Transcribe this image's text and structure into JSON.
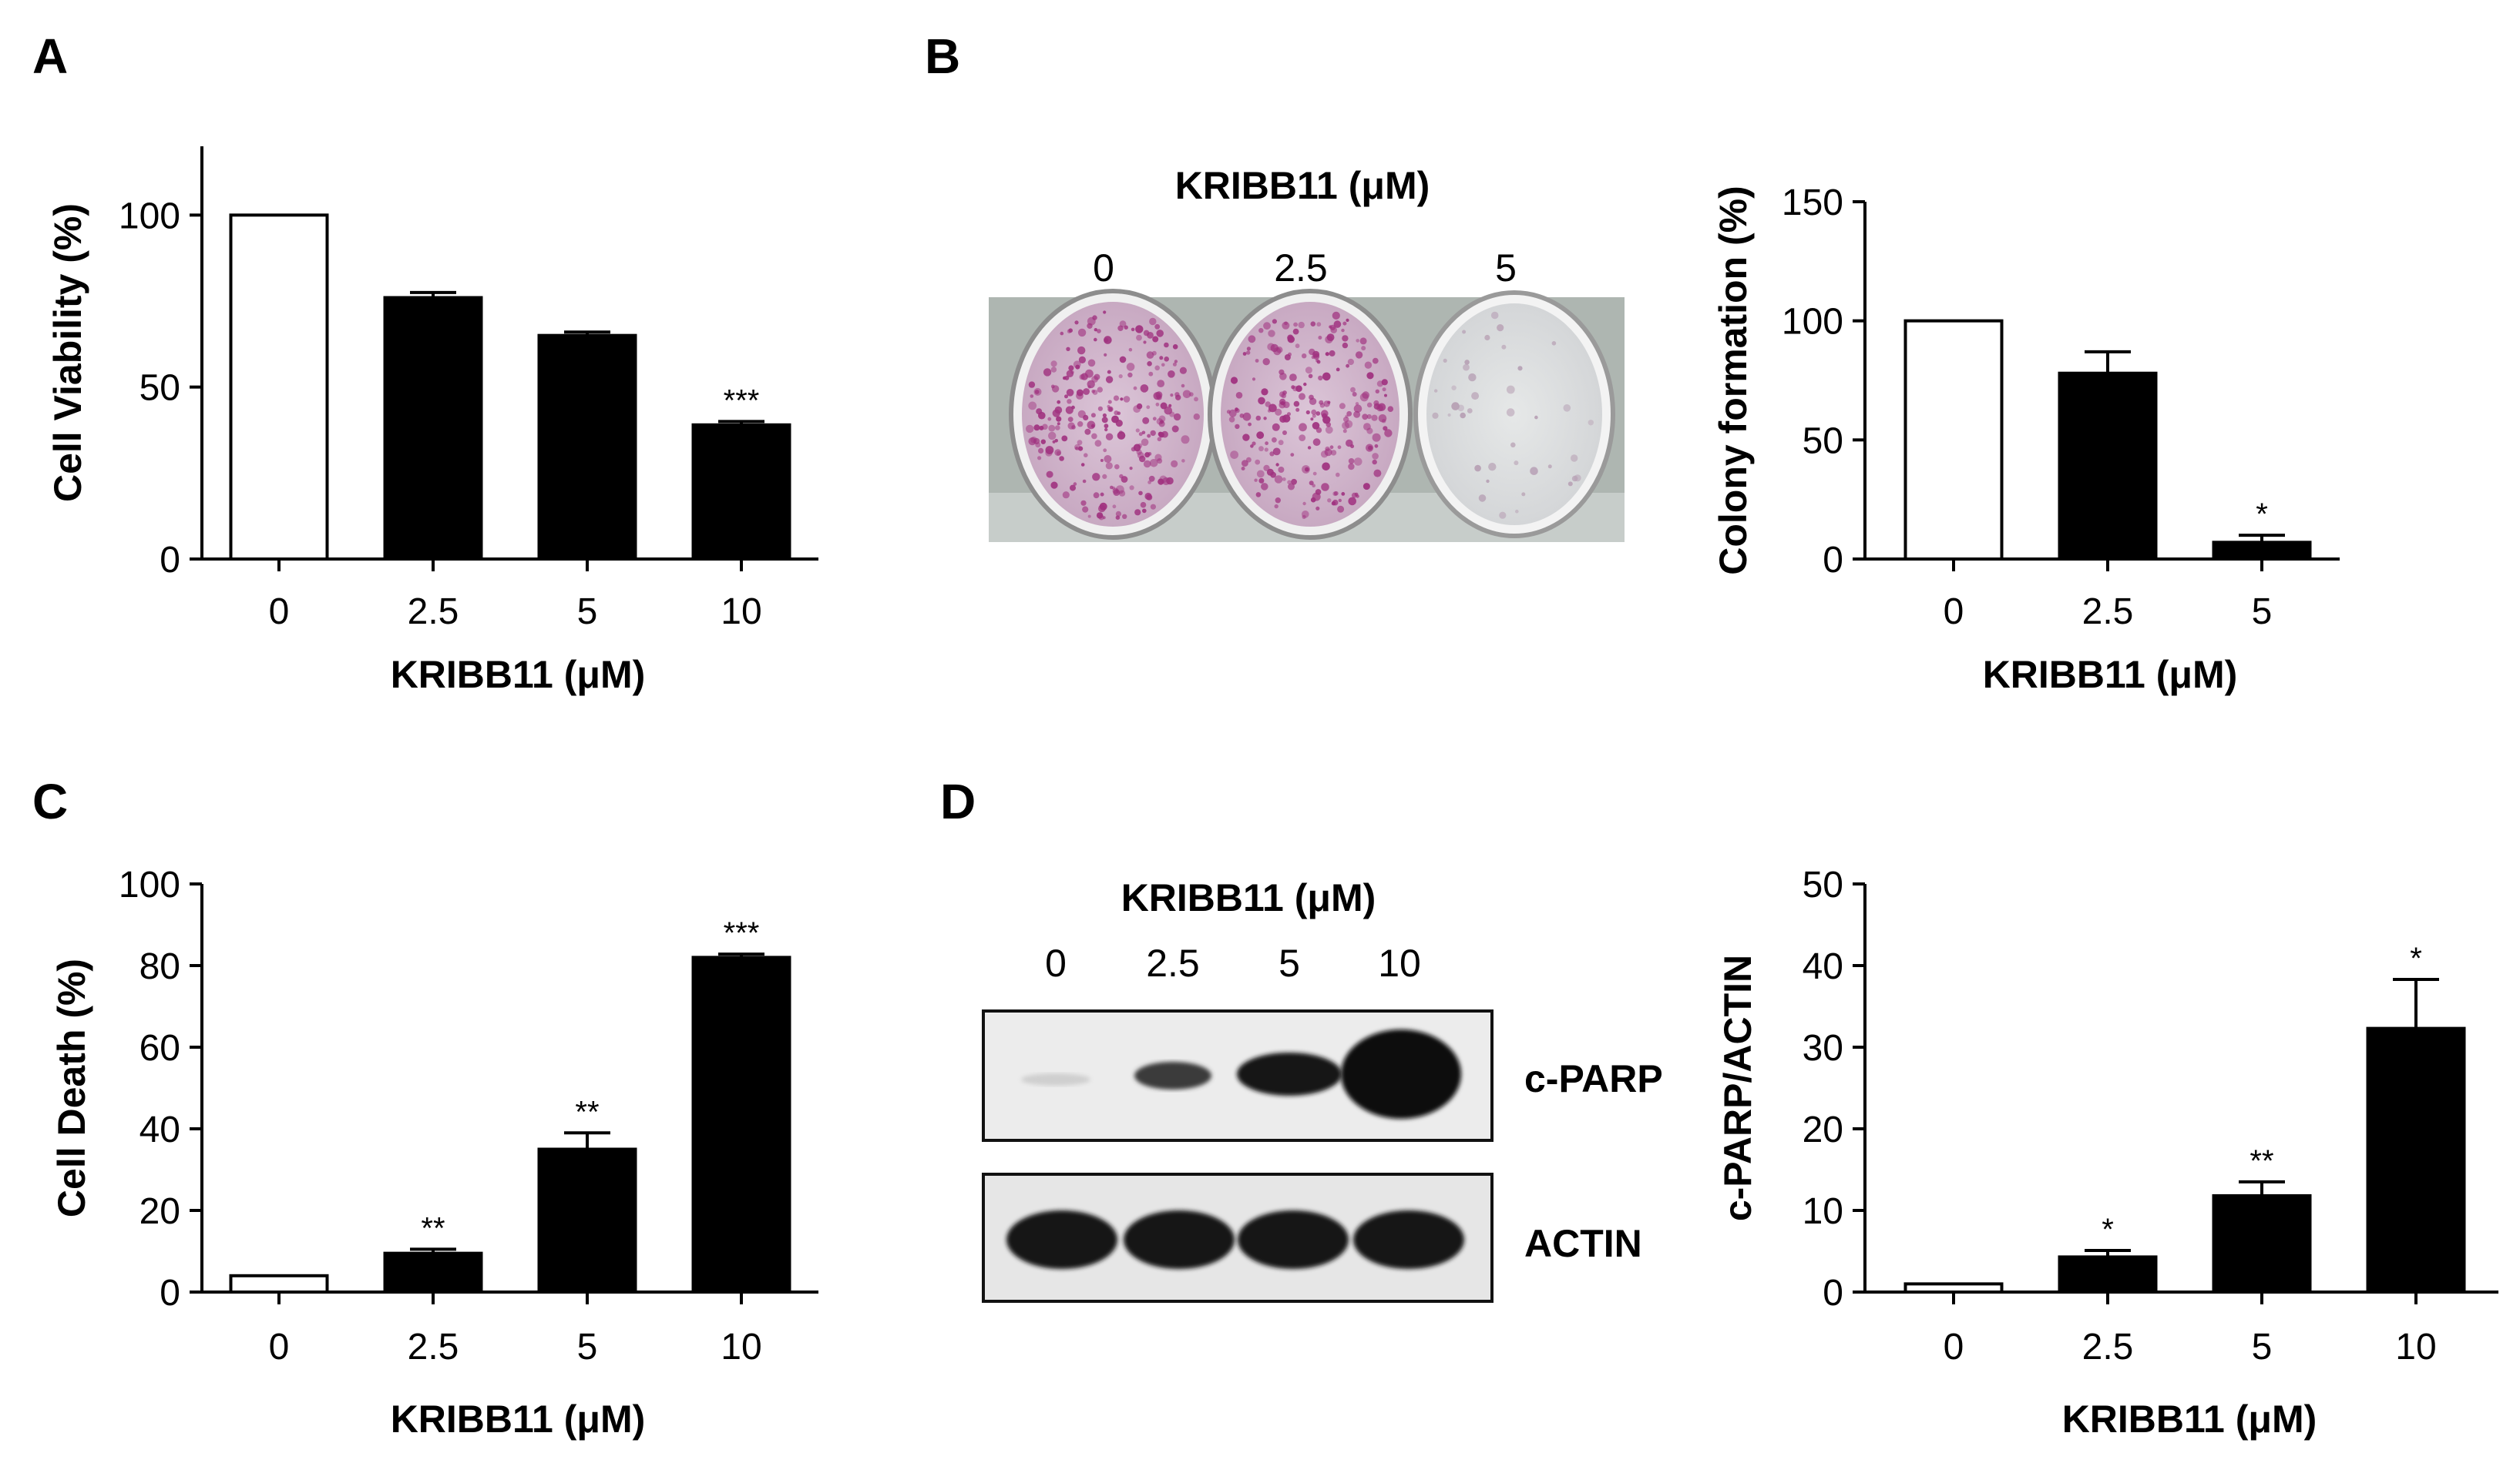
{
  "panels": {
    "A": {
      "letter": "A"
    },
    "B": {
      "letter": "B",
      "plate_title": "KRIBB11 (μM)",
      "plate_lanes": [
        "0",
        "2.5",
        "5"
      ]
    },
    "C": {
      "letter": "C"
    },
    "D": {
      "letter": "D",
      "blot_title": "KRIBB11 (μM)",
      "blot_lanes": [
        "0",
        "2.5",
        "5",
        "10"
      ],
      "blot_rows": [
        "c-PARP",
        "ACTIN"
      ]
    }
  },
  "chart_data": [
    {
      "id": "A",
      "type": "bar",
      "categories": [
        "0",
        "2.5",
        "5",
        "10"
      ],
      "values": [
        100,
        76,
        65,
        39
      ],
      "errors": [
        0,
        1.5,
        1,
        1
      ],
      "fills": [
        "#ffffff",
        "#000000",
        "#000000",
        "#000000"
      ],
      "significance": [
        "",
        "",
        "",
        "***"
      ],
      "xlabel": "KRIBB11 (μM)",
      "ylabel": "Cell Viability (%)",
      "ylim": [
        0,
        120
      ],
      "yticks": [
        0,
        50,
        100
      ]
    },
    {
      "id": "B",
      "type": "bar",
      "categories": [
        "0",
        "2.5",
        "5"
      ],
      "values": [
        100,
        78,
        7
      ],
      "errors": [
        0,
        9,
        3
      ],
      "fills": [
        "#ffffff",
        "#000000",
        "#000000"
      ],
      "significance": [
        "",
        "",
        "*"
      ],
      "xlabel": "KRIBB11 (μM)",
      "ylabel": "Colony formation (%)",
      "ylim": [
        0,
        150
      ],
      "yticks": [
        0,
        50,
        100,
        150
      ]
    },
    {
      "id": "C",
      "type": "bar",
      "categories": [
        "0",
        "2.5",
        "5",
        "10"
      ],
      "values": [
        4,
        9.5,
        35,
        82
      ],
      "errors": [
        0,
        1,
        4,
        0.8
      ],
      "fills": [
        "#ffffff",
        "#000000",
        "#000000",
        "#000000"
      ],
      "significance": [
        "",
        "**",
        "**",
        "***"
      ],
      "xlabel": "KRIBB11 (μM)",
      "ylabel": "Cell Death (%)",
      "ylim": [
        0,
        100
      ],
      "yticks": [
        0,
        20,
        40,
        60,
        80,
        100
      ]
    },
    {
      "id": "D",
      "type": "bar",
      "categories": [
        "0",
        "2.5",
        "5",
        "10"
      ],
      "values": [
        1,
        4.3,
        11.8,
        32.3
      ],
      "errors": [
        0,
        0.8,
        1.7,
        6
      ],
      "fills": [
        "#ffffff",
        "#000000",
        "#000000",
        "#000000"
      ],
      "significance": [
        "",
        "*",
        "**",
        "*"
      ],
      "xlabel": "KRIBB11 (μM)",
      "ylabel": "c-PARP/ACTIN",
      "ylim": [
        0,
        50
      ],
      "yticks": [
        0,
        10,
        20,
        30,
        40,
        50
      ]
    }
  ]
}
